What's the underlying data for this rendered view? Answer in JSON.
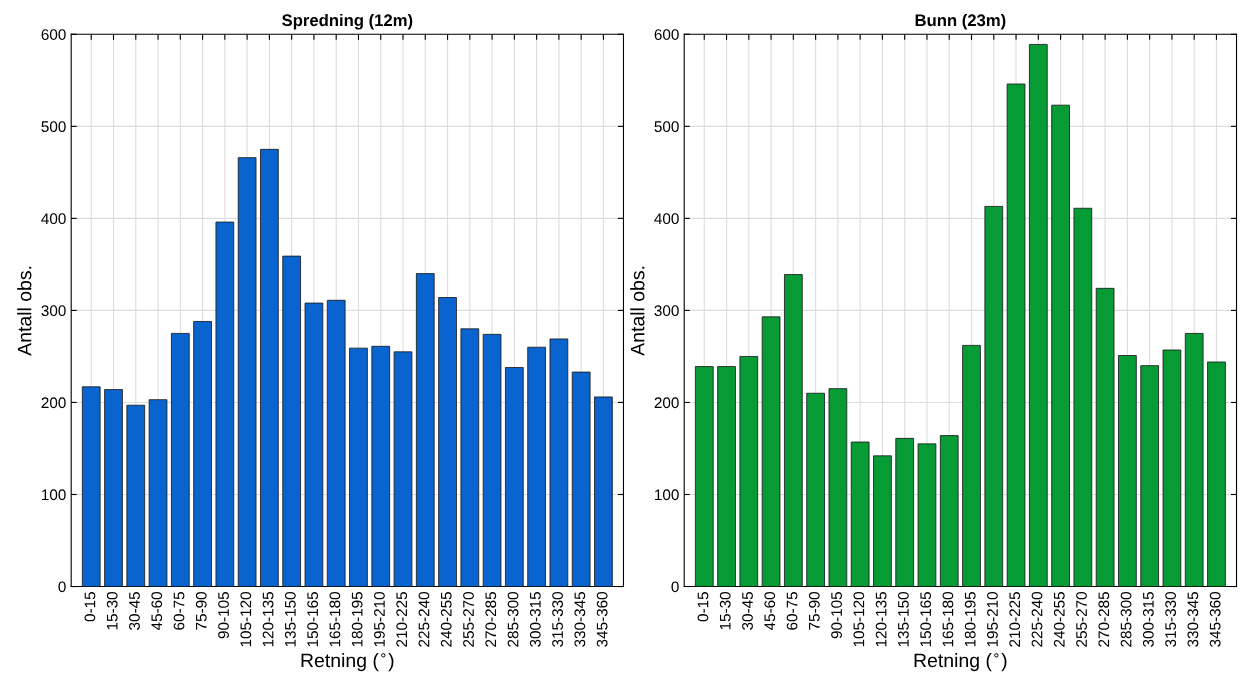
{
  "chart_data": [
    {
      "type": "bar",
      "title": "Spredning (12m)",
      "xlabel": "Retning ($^{∘}$)",
      "ylabel": "Antall obs.",
      "categories": [
        "0-15",
        "15-30",
        "30-45",
        "45-60",
        "60-75",
        "75-90",
        "90-105",
        "105-120",
        "120-135",
        "135-150",
        "150-165",
        "165-180",
        "180-195",
        "195-210",
        "210-225",
        "225-240",
        "240-255",
        "255-270",
        "270-285",
        "285-300",
        "300-315",
        "315-330",
        "330-345",
        "345-360"
      ],
      "values": [
        217,
        214,
        197,
        203,
        275,
        288,
        396,
        466,
        475,
        359,
        308,
        311,
        259,
        261,
        255,
        340,
        314,
        280,
        274,
        238,
        260,
        269,
        233,
        206
      ],
      "color": "#0a64cf",
      "ylim": [
        0,
        600
      ],
      "yticks": [
        0,
        100,
        200,
        300,
        400,
        500,
        600
      ],
      "grid": true
    },
    {
      "type": "bar",
      "title": "Bunn (23m)",
      "xlabel": "Retning ($^{∘}$)",
      "ylabel": "Antall obs.",
      "categories": [
        "0-15",
        "15-30",
        "30-45",
        "45-60",
        "60-75",
        "75-90",
        "90-105",
        "105-120",
        "120-135",
        "135-150",
        "150-165",
        "165-180",
        "180-195",
        "195-210",
        "210-225",
        "225-240",
        "240-255",
        "255-270",
        "270-285",
        "285-300",
        "300-315",
        "315-330",
        "330-345",
        "345-360"
      ],
      "values": [
        239,
        239,
        250,
        293,
        339,
        210,
        215,
        157,
        142,
        161,
        155,
        164,
        262,
        413,
        546,
        589,
        523,
        411,
        324,
        251,
        240,
        257,
        275,
        244
      ],
      "color": "#079b36",
      "ylim": [
        0,
        600
      ],
      "yticks": [
        0,
        100,
        200,
        300,
        400,
        500,
        600
      ],
      "grid": true
    }
  ]
}
